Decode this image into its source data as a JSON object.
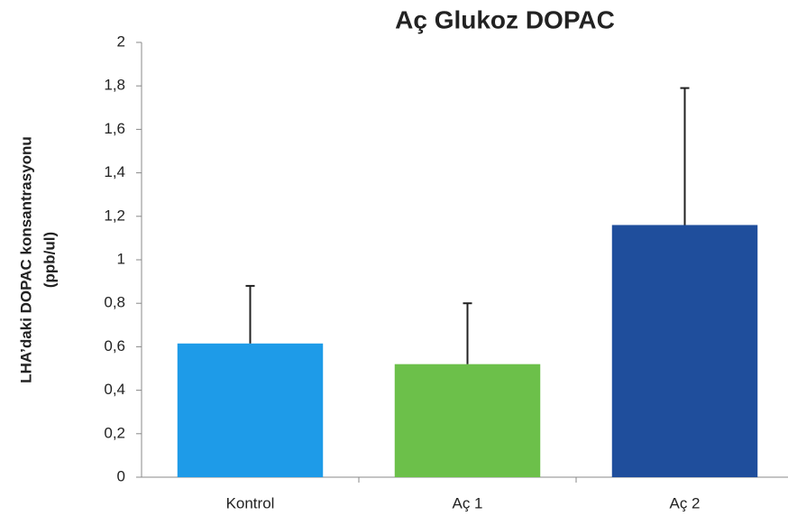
{
  "chart_data": {
    "type": "bar",
    "title": "Aç Glukoz DOPAC",
    "ylabel": [
      "LHA’daki DOPAC konsantrasyonu",
      "(ppb/ul)"
    ],
    "categories": [
      "Kontrol",
      "Aç 1",
      "Aç 2"
    ],
    "values": [
      0.615,
      0.52,
      1.16
    ],
    "errors": [
      0.265,
      0.28,
      0.63
    ],
    "colors": [
      "#1e9be8",
      "#6cc04a",
      "#1f4e9c"
    ],
    "ylim": [
      0,
      2
    ],
    "yticks": [
      0,
      {
        "value": 0.2,
        "label": "0,2"
      },
      {
        "value": 0.4,
        "label": "0,4"
      },
      {
        "value": 0.6,
        "label": "0,6"
      },
      {
        "value": 0.8,
        "label": "0,8"
      },
      1,
      {
        "value": 1.2,
        "label": "1,2"
      },
      {
        "value": 1.4,
        "label": "1,4"
      },
      {
        "value": 1.6,
        "label": "1,6"
      },
      {
        "value": 1.8,
        "label": "1,8"
      },
      2
    ],
    "grid": false
  }
}
